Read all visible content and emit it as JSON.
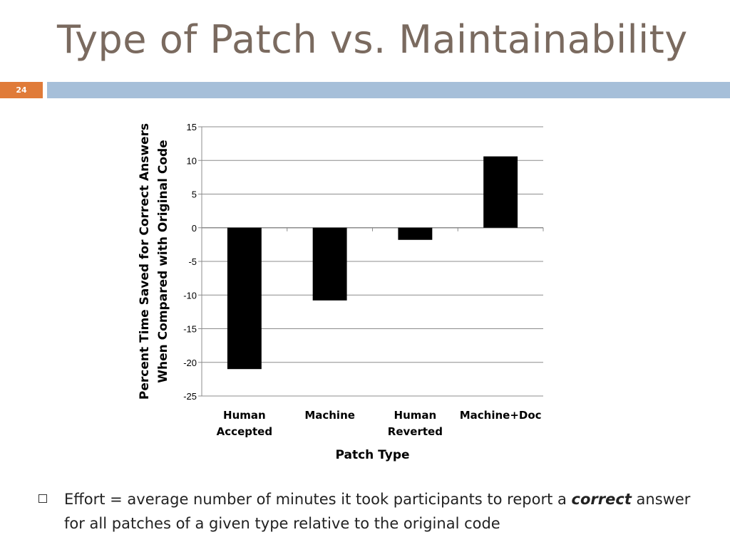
{
  "slide": {
    "title": "Type of Patch vs. Maintainability",
    "number": "24"
  },
  "colors": {
    "accent_bar": "#a6bfd9",
    "number_box": "#e07b39",
    "title": "#7a6a5f",
    "bars": "#000000"
  },
  "chart_data": {
    "type": "bar",
    "categories": [
      [
        "Human",
        "Accepted"
      ],
      [
        "Machine"
      ],
      [
        "Human",
        "Reverted"
      ],
      [
        "Machine+Doc"
      ]
    ],
    "values": [
      -21,
      -10.8,
      -1.8,
      10.6
    ],
    "ylim": [
      -25,
      15
    ],
    "yticks": [
      15,
      10,
      5,
      0,
      -5,
      -10,
      -15,
      -20,
      -25
    ],
    "ytick_labels": [
      "15",
      "10",
      "5",
      "0",
      "-5",
      "-10",
      "-15",
      "-20",
      "-25"
    ],
    "ylabel": [
      "Percent Time Saved for Correct Answers",
      "When Compared with Original Code"
    ],
    "xlabel": "Patch Type",
    "grid": true
  },
  "bullet": {
    "text_before": "Effort = average number of minutes it took participants to report a ",
    "emphasis": "correct",
    "text_after": " answer for all patches of a given type relative to the original code"
  }
}
